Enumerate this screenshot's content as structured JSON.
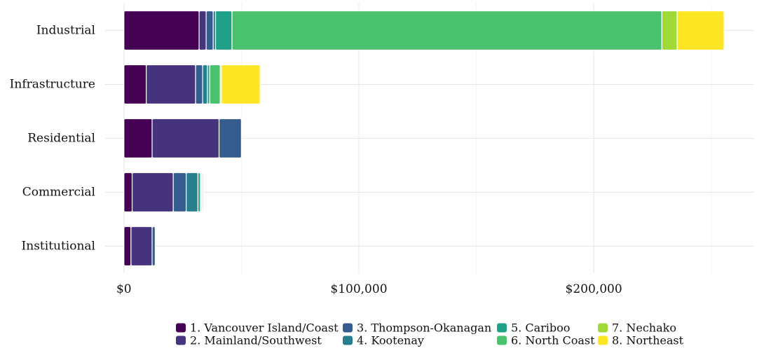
{
  "chart_data": {
    "type": "bar",
    "orientation": "horizontal",
    "stacked": true,
    "categories": [
      "Industrial",
      "Infrastructure",
      "Residential",
      "Commercial",
      "Institutional"
    ],
    "x_ticks": [
      0,
      100000,
      200000
    ],
    "x_tick_labels": [
      "$0",
      "$100,000",
      "$200,000"
    ],
    "xlim": [
      -8000,
      268000
    ],
    "grid": true,
    "legend_position": "bottom",
    "series": [
      {
        "name": "1. Vancouver Island/Coast",
        "color": "#440154",
        "values": [
          32000,
          9500,
          12000,
          3500,
          3000
        ]
      },
      {
        "name": "2. Mainland/Southwest",
        "color": "#46337E",
        "values": [
          3000,
          21000,
          28500,
          17500,
          9000
        ]
      },
      {
        "name": "3. Thompson-Okanagan",
        "color": "#365C8D",
        "values": [
          3000,
          3000,
          9500,
          5500,
          1300
        ]
      },
      {
        "name": "4. Kootenay",
        "color": "#277F8E",
        "values": [
          1000,
          2000,
          0,
          5000,
          0
        ]
      },
      {
        "name": "5. Cariboo",
        "color": "#1FA187",
        "values": [
          7000,
          1000,
          0,
          1000,
          0
        ]
      },
      {
        "name": "6. North Coast",
        "color": "#4AC16D",
        "values": [
          183000,
          4500,
          0,
          500,
          0
        ]
      },
      {
        "name": "7. Nechako",
        "color": "#A0DA39",
        "values": [
          6500,
          500,
          0,
          300,
          0
        ]
      },
      {
        "name": "8. Northeast",
        "color": "#FDE725",
        "values": [
          20000,
          16500,
          0,
          500,
          0
        ]
      }
    ]
  }
}
